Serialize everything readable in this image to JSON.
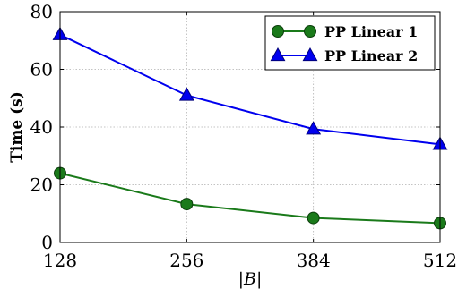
{
  "chart_data": {
    "type": "line",
    "xlabel": "|B|",
    "ylabel": "Time (s)",
    "x": [
      128,
      256,
      384,
      512
    ],
    "xlim": [
      128,
      512
    ],
    "ylim": [
      0,
      80
    ],
    "xticks": [
      128,
      256,
      384,
      512
    ],
    "yticks": [
      0,
      20,
      40,
      60,
      80
    ],
    "grid": true,
    "legend_position": "top-right",
    "series": [
      {
        "name": "PP Linear 1",
        "values": [
          24,
          13.3,
          8.5,
          6.7
        ],
        "color": "#1a7a1a",
        "marker": "circle"
      },
      {
        "name": "PP Linear 2",
        "values": [
          72,
          51,
          39.3,
          34
        ],
        "color": "#0000ee",
        "marker": "triangle"
      }
    ]
  }
}
